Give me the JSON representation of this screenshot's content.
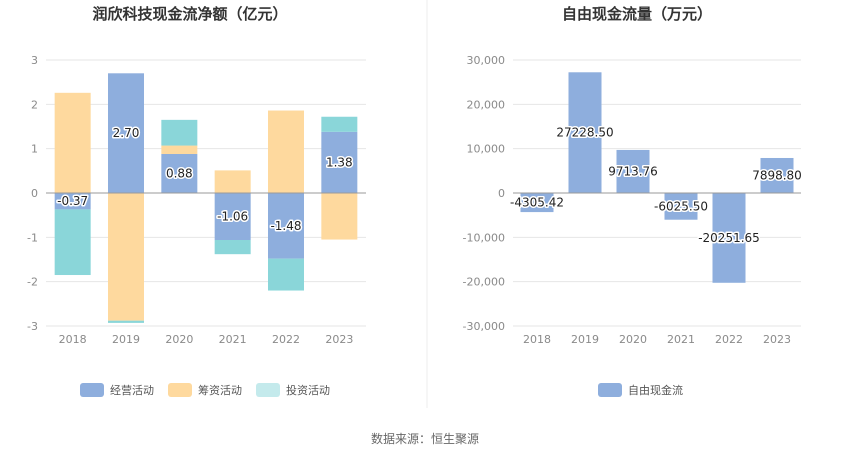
{
  "source": "数据来源：恒生聚源",
  "chart_data": [
    {
      "type": "bar",
      "stacked": true,
      "title": "润欣科技现金流净额（亿元）",
      "categories": [
        "2018",
        "2019",
        "2020",
        "2021",
        "2022",
        "2023"
      ],
      "ylim": [
        -3,
        3
      ],
      "yticks": [
        3,
        2,
        1,
        0,
        -1,
        -2,
        -3
      ],
      "ytick_labels": [
        "3",
        "2",
        "1",
        "0",
        "-1",
        "-2",
        "-3"
      ],
      "series": [
        {
          "name": "经营活动",
          "color": "#8eaedd",
          "values": [
            -0.37,
            2.7,
            0.88,
            -1.06,
            -1.48,
            1.38
          ],
          "labels": [
            "-0.37",
            "2.70",
            "0.88",
            "-1.06",
            "-1.48",
            "1.38"
          ]
        },
        {
          "name": "筹资活动",
          "color": "#fed99e",
          "values": [
            2.26,
            -2.88,
            0.19,
            0.51,
            1.86,
            -1.05
          ]
        },
        {
          "name": "投资活动",
          "color": "#8ad6d9",
          "values": [
            -1.48,
            -0.05,
            0.58,
            -0.32,
            -0.72,
            0.34
          ]
        }
      ],
      "legend": [
        {
          "name": "经营活动",
          "color": "#8eaedd"
        },
        {
          "name": "筹资活动",
          "color": "#fed99e"
        },
        {
          "name": "投资活动",
          "color": "#c4eaec"
        }
      ]
    },
    {
      "type": "bar",
      "title": "自由现金流量（万元）",
      "categories": [
        "2018",
        "2019",
        "2020",
        "2021",
        "2022",
        "2023"
      ],
      "ylim": [
        -30000,
        30000
      ],
      "yticks": [
        30000,
        20000,
        10000,
        0,
        -10000,
        -20000,
        -30000
      ],
      "ytick_labels": [
        "30,000",
        "20,000",
        "10,000",
        "0",
        "-10,000",
        "-20,000",
        "-30,000"
      ],
      "series": [
        {
          "name": "自由现金流",
          "color": "#8eaedd",
          "values": [
            -4305.42,
            27228.5,
            9713.76,
            -6025.5,
            -20251.65,
            7898.8
          ],
          "labels": [
            "-4305.42",
            "27228.50",
            "9713.76",
            "-6025.50",
            "-20251.65",
            "7898.80"
          ]
        }
      ],
      "legend": [
        {
          "name": "自由现金流",
          "color": "#8eaedd"
        }
      ]
    }
  ]
}
